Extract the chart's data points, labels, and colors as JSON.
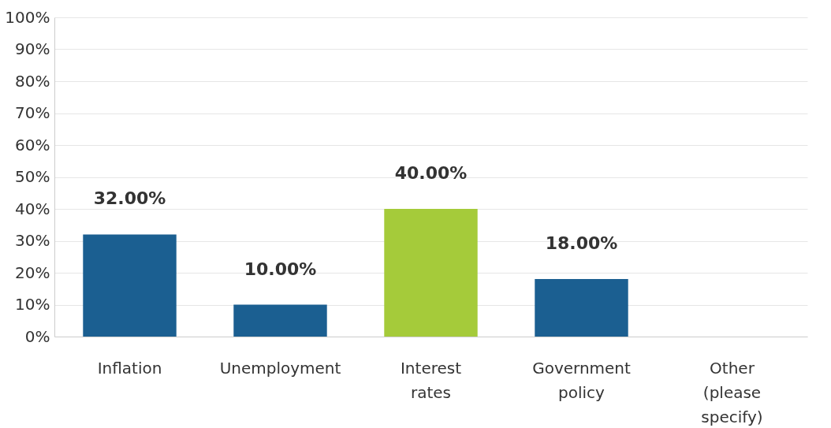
{
  "chart_data": {
    "type": "bar",
    "categories": [
      "Inflation",
      "Unemployment",
      "Interest rates",
      "Government policy",
      "Other (please specify)"
    ],
    "values": [
      32,
      10,
      40,
      18,
      0
    ],
    "colors": [
      "#1b5f91",
      "#1b5f91",
      "#a5cb3a",
      "#1b5f91",
      "#1b5f91"
    ],
    "value_labels": [
      "32.00%",
      "10.00%",
      "40.00%",
      "18.00%",
      null
    ],
    "ylim": [
      0,
      100
    ],
    "yticks": [
      {
        "value": 0,
        "label": "0%"
      },
      {
        "value": 10,
        "label": "10%"
      },
      {
        "value": 20,
        "label": "20%"
      },
      {
        "value": 30,
        "label": "30%"
      },
      {
        "value": 40,
        "label": "40%"
      },
      {
        "value": 50,
        "label": "50%"
      },
      {
        "value": 60,
        "label": "60%"
      },
      {
        "value": 70,
        "label": "70%"
      },
      {
        "value": 80,
        "label": "80%"
      },
      {
        "value": 90,
        "label": "90%"
      },
      {
        "value": 100,
        "label": "100%"
      }
    ],
    "grid": "y"
  }
}
